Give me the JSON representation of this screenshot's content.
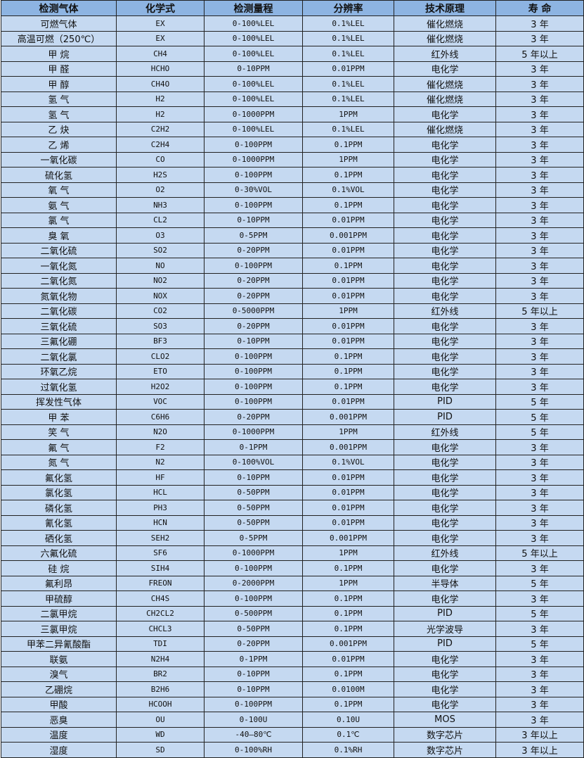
{
  "colors": {
    "header_bg": "#8DB4E2",
    "row_bg": "#C5D9F1",
    "border": "#222222"
  },
  "headers": [
    "检测气体",
    "化学式",
    "检测量程",
    "分辨率",
    "技术原理",
    "寿 命"
  ],
  "rows": [
    [
      "可燃气体",
      "EX",
      "0-100%LEL",
      "0.1%LEL",
      "催化燃烧",
      "3 年"
    ],
    [
      "高温可燃（250℃）",
      "EX",
      "0-100%LEL",
      "0.1%LEL",
      "催化燃烧",
      "3 年"
    ],
    [
      "甲 烷",
      "CH4",
      "0-100%LEL",
      "0.1%LEL",
      "红外线",
      "5 年以上"
    ],
    [
      "甲 醛",
      "HCHO",
      "0-10PPM",
      "0.01PPM",
      "电化学",
      "3 年"
    ],
    [
      "甲 醇",
      "CH4O",
      "0-100%LEL",
      "0.1%LEL",
      "催化燃烧",
      "3 年"
    ],
    [
      "氢 气",
      "H2",
      "0-100%LEL",
      "0.1%LEL",
      "催化燃烧",
      "3 年"
    ],
    [
      "氢 气",
      "H2",
      "0-1000PPM",
      "1PPM",
      "电化学",
      "3 年"
    ],
    [
      "乙 炔",
      "C2H2",
      "0-100%LEL",
      "0.1%LEL",
      "催化燃烧",
      "3 年"
    ],
    [
      "乙 烯",
      "C2H4",
      "0-100PPM",
      "0.1PPM",
      "电化学",
      "3 年"
    ],
    [
      "一氧化碳",
      "CO",
      "0-1000PPM",
      "1PPM",
      "电化学",
      "3 年"
    ],
    [
      "硫化氢",
      "H2S",
      "0-100PPM",
      "0.1PPM",
      "电化学",
      "3 年"
    ],
    [
      "氧 气",
      "O2",
      "0-30%VOL",
      "0.1%VOL",
      "电化学",
      "3 年"
    ],
    [
      "氨 气",
      "NH3",
      "0-100PPM",
      "0.1PPM",
      "电化学",
      "3 年"
    ],
    [
      "氯 气",
      "CL2",
      "0-10PPM",
      "0.01PPM",
      "电化学",
      "3 年"
    ],
    [
      "臭 氧",
      "O3",
      "0-5PPM",
      "0.001PPM",
      "电化学",
      "3 年"
    ],
    [
      "二氧化硫",
      "SO2",
      "0-20PPM",
      "0.01PPM",
      "电化学",
      "3 年"
    ],
    [
      "一氧化氮",
      "NO",
      "0-100PPM",
      "0.1PPM",
      "电化学",
      "3 年"
    ],
    [
      "二氧化氮",
      "NO2",
      "0-20PPM",
      "0.01PPM",
      "电化学",
      "3 年"
    ],
    [
      "氮氧化物",
      "NOX",
      "0-20PPM",
      "0.01PPM",
      "电化学",
      "3 年"
    ],
    [
      "二氧化碳",
      "CO2",
      "0-5000PPM",
      "1PPM",
      "红外线",
      "5 年以上"
    ],
    [
      "三氧化硫",
      "SO3",
      "0-20PPM",
      "0.01PPM",
      "电化学",
      "3 年"
    ],
    [
      "三氟化硼",
      "BF3",
      "0-10PPM",
      "0.01PPM",
      "电化学",
      "3 年"
    ],
    [
      "二氧化氯",
      "CLO2",
      "0-100PPM",
      "0.1PPM",
      "电化学",
      "3 年"
    ],
    [
      "环氧乙烷",
      "ETO",
      "0-100PPM",
      "0.1PPM",
      "电化学",
      "3 年"
    ],
    [
      "过氧化氢",
      "H2O2",
      "0-100PPM",
      "0.1PPM",
      "电化学",
      "3 年"
    ],
    [
      "挥发性气体",
      "VOC",
      "0-100PPM",
      "0.01PPM",
      "PID",
      "5 年"
    ],
    [
      "甲 苯",
      "C6H6",
      "0-20PPM",
      "0.001PPM",
      "PID",
      "5 年"
    ],
    [
      "笑 气",
      "N2O",
      "0-1000PPM",
      "1PPM",
      "红外线",
      "5 年"
    ],
    [
      "氟 气",
      "F2",
      "0-1PPM",
      "0.001PPM",
      "电化学",
      "3 年"
    ],
    [
      "氮 气",
      "N2",
      "0-100%VOL",
      "0.1%VOL",
      "电化学",
      "3 年"
    ],
    [
      "氟化氢",
      "HF",
      "0-10PPM",
      "0.01PPM",
      "电化学",
      "3 年"
    ],
    [
      "氯化氢",
      "HCL",
      "0-50PPM",
      "0.01PPM",
      "电化学",
      "3 年"
    ],
    [
      "磷化氢",
      "PH3",
      "0-50PPM",
      "0.01PPM",
      "电化学",
      "3 年"
    ],
    [
      "氰化氢",
      "HCN",
      "0-50PPM",
      "0.01PPM",
      "电化学",
      "3 年"
    ],
    [
      "硒化氢",
      "SEH2",
      "0-5PPM",
      "0.001PPM",
      "电化学",
      "3 年"
    ],
    [
      "六氟化硫",
      "SF6",
      "0-1000PPM",
      "1PPM",
      "红外线",
      "5 年以上"
    ],
    [
      "硅 烷",
      "SIH4",
      "0-100PPM",
      "0.1PPM",
      "电化学",
      "3 年"
    ],
    [
      "氟利昂",
      "FREON",
      "0-2000PPM",
      "1PPM",
      "半导体",
      "5 年"
    ],
    [
      "甲硫醇",
      "CH4S",
      "0-100PPM",
      "0.1PPM",
      "电化学",
      "3 年"
    ],
    [
      "二氯甲烷",
      "CH2CL2",
      "0-500PPM",
      "0.1PPM",
      "PID",
      "5 年"
    ],
    [
      "三氯甲烷",
      "CHCL3",
      "0-50PPM",
      "0.1PPM",
      "光学波导",
      "3 年"
    ],
    [
      "甲苯二异氰酸酯",
      "TDI",
      "0-20PPM",
      "0.001PPM",
      "PID",
      "5 年"
    ],
    [
      "联氨",
      "N2H4",
      "0-1PPM",
      "0.01PPM",
      "电化学",
      "3 年"
    ],
    [
      "溴气",
      "BR2",
      "0-10PPM",
      "0.1PPM",
      "电化学",
      "3 年"
    ],
    [
      "乙硼烷",
      "B2H6",
      "0-10PPM",
      "0.0100M",
      "电化学",
      "3 年"
    ],
    [
      "甲酸",
      "HCOOH",
      "0-100PPM",
      "0.1PPM",
      "电化学",
      "3 年"
    ],
    [
      "恶臭",
      "OU",
      "0-100U",
      "0.10U",
      "MOS",
      "3 年"
    ],
    [
      "温度",
      "WD",
      "-40—80℃",
      "0.1℃",
      "数字芯片",
      "3 年以上"
    ],
    [
      "湿度",
      "SD",
      "0-100%RH",
      "0.1%RH",
      "数字芯片",
      "3 年以上"
    ]
  ]
}
